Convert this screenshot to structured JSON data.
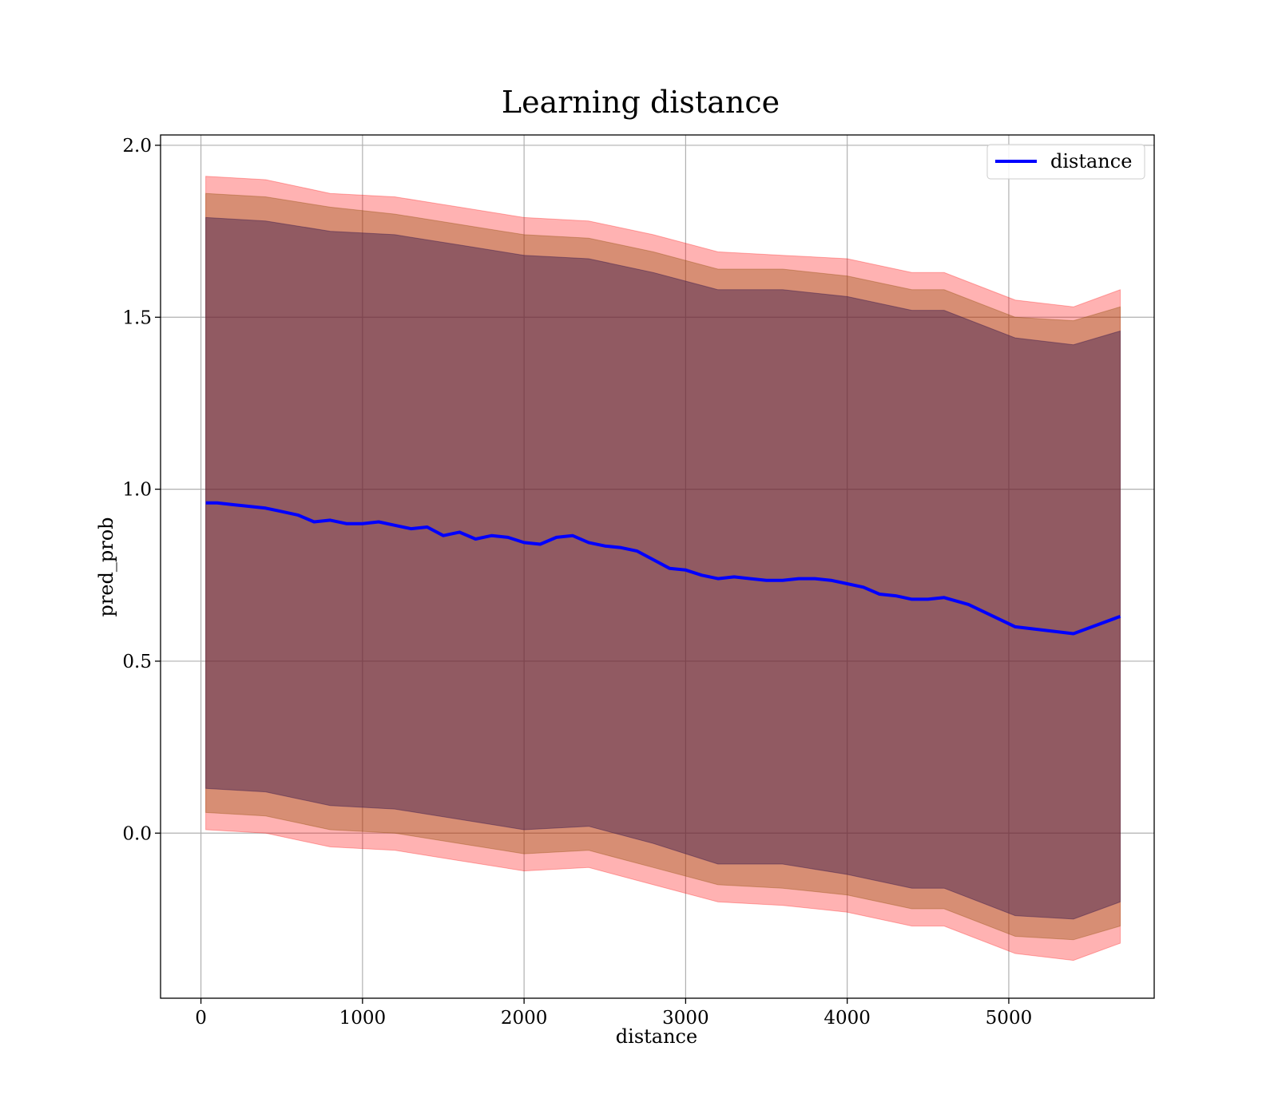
{
  "chart_data": {
    "type": "area",
    "title": "Learning distance",
    "xlabel": "distance",
    "ylabel": "pred_prob",
    "xlim": [
      -250,
      5900
    ],
    "ylim": [
      -0.48,
      2.03
    ],
    "x_ticks": [
      0,
      1000,
      2000,
      3000,
      4000,
      5000
    ],
    "x_tick_labels": [
      "0",
      "1000",
      "2000",
      "3000",
      "4000",
      "5000"
    ],
    "y_ticks": [
      0.0,
      0.5,
      1.0,
      1.5,
      2.0
    ],
    "y_tick_labels": [
      "0.0",
      "0.5",
      "1.0",
      "1.5",
      "2.0"
    ],
    "grid": true,
    "legend_position": "top-right",
    "series": [
      {
        "name": "distance",
        "color": "#0000ff",
        "x": [
          30,
          100,
          200,
          300,
          400,
          500,
          600,
          700,
          800,
          900,
          1000,
          1100,
          1200,
          1300,
          1400,
          1500,
          1600,
          1700,
          1800,
          1900,
          2000,
          2100,
          2200,
          2300,
          2400,
          2500,
          2600,
          2700,
          2800,
          2900,
          3000,
          3100,
          3200,
          3300,
          3400,
          3500,
          3600,
          3700,
          3800,
          3900,
          4000,
          4100,
          4200,
          4300,
          4400,
          4500,
          4600,
          4750,
          5040,
          5400,
          5690
        ],
        "values": [
          0.96,
          0.96,
          0.955,
          0.95,
          0.945,
          0.935,
          0.925,
          0.905,
          0.91,
          0.9,
          0.9,
          0.905,
          0.895,
          0.885,
          0.89,
          0.865,
          0.875,
          0.855,
          0.865,
          0.86,
          0.845,
          0.84,
          0.86,
          0.865,
          0.845,
          0.835,
          0.83,
          0.82,
          0.795,
          0.77,
          0.765,
          0.75,
          0.74,
          0.745,
          0.74,
          0.735,
          0.735,
          0.74,
          0.74,
          0.735,
          0.725,
          0.715,
          0.695,
          0.69,
          0.68,
          0.68,
          0.685,
          0.665,
          0.6,
          0.58,
          0.63
        ]
      }
    ],
    "bands": [
      {
        "color": "#ff0000",
        "opacity": 0.3,
        "x": [
          30,
          400,
          800,
          1200,
          1600,
          2000,
          2400,
          2800,
          3200,
          3600,
          4000,
          4400,
          4600,
          5040,
          5400,
          5690
        ],
        "upper": [
          1.91,
          1.9,
          1.86,
          1.85,
          1.82,
          1.79,
          1.78,
          1.74,
          1.69,
          1.68,
          1.67,
          1.63,
          1.63,
          1.55,
          1.53,
          1.58
        ],
        "lower": [
          0.01,
          0.0,
          -0.04,
          -0.05,
          -0.08,
          -0.11,
          -0.1,
          -0.15,
          -0.2,
          -0.21,
          -0.23,
          -0.27,
          -0.27,
          -0.35,
          -0.37,
          -0.32
        ]
      },
      {
        "color": "#8b4a00",
        "opacity": 0.35,
        "x": [
          30,
          400,
          800,
          1200,
          1600,
          2000,
          2400,
          2800,
          3200,
          3600,
          4000,
          4400,
          4600,
          5040,
          5400,
          5690
        ],
        "upper": [
          1.86,
          1.85,
          1.82,
          1.8,
          1.77,
          1.74,
          1.73,
          1.69,
          1.64,
          1.64,
          1.62,
          1.58,
          1.58,
          1.5,
          1.49,
          1.53
        ],
        "lower": [
          0.06,
          0.05,
          0.01,
          0.0,
          -0.03,
          -0.06,
          -0.05,
          -0.1,
          -0.15,
          -0.16,
          -0.18,
          -0.22,
          -0.22,
          -0.3,
          -0.31,
          -0.27
        ]
      },
      {
        "color": "#3b1a4d",
        "opacity": 0.45,
        "x": [
          30,
          400,
          800,
          1200,
          1600,
          2000,
          2400,
          2800,
          3200,
          3600,
          4000,
          4400,
          4600,
          5040,
          5400,
          5690
        ],
        "upper": [
          1.79,
          1.78,
          1.75,
          1.74,
          1.71,
          1.68,
          1.67,
          1.63,
          1.58,
          1.58,
          1.56,
          1.52,
          1.52,
          1.44,
          1.42,
          1.46
        ],
        "lower": [
          0.13,
          0.12,
          0.08,
          0.07,
          0.04,
          0.01,
          0.02,
          -0.03,
          -0.09,
          -0.09,
          -0.12,
          -0.16,
          -0.16,
          -0.24,
          -0.25,
          -0.2
        ]
      }
    ]
  }
}
